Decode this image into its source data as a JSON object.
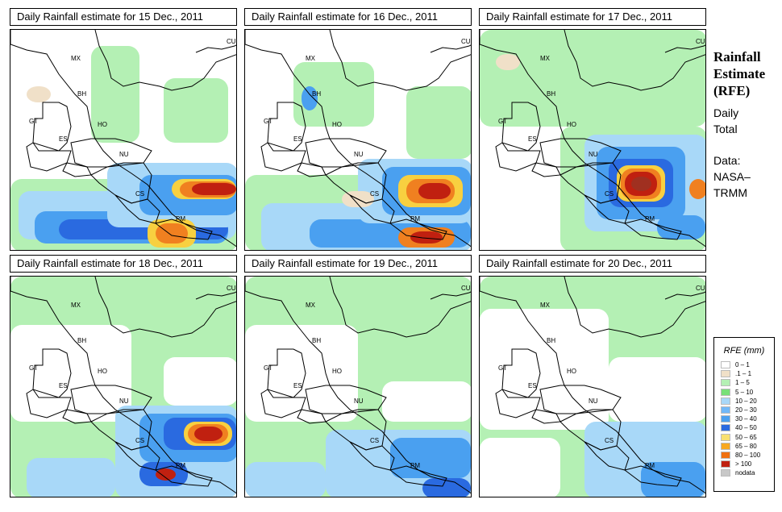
{
  "panels": [
    {
      "title": "Daily Rainfall estimate for  15 Dec., 2011",
      "blobs": [
        {
          "c": "#b4f0b4",
          "x": 0,
          "y": 185,
          "w": 282,
          "h": 90
        },
        {
          "c": "#a8d8f8",
          "x": 10,
          "y": 200,
          "w": 270,
          "h": 60
        },
        {
          "c": "#4aa0f0",
          "x": 30,
          "y": 225,
          "w": 240,
          "h": 40
        },
        {
          "c": "#2a6ae0",
          "x": 60,
          "y": 235,
          "w": 210,
          "h": 25
        },
        {
          "c": "#b4f0b4",
          "x": 100,
          "y": 20,
          "w": 60,
          "h": 120
        },
        {
          "c": "#b4f0b4",
          "x": 190,
          "y": 60,
          "w": 80,
          "h": 80
        },
        {
          "c": "#a8d8f8",
          "x": 120,
          "y": 165,
          "w": 162,
          "h": 80
        },
        {
          "c": "#4aa0f0",
          "x": 160,
          "y": 180,
          "w": 122,
          "h": 50
        },
        {
          "c": "#f8d040",
          "x": 200,
          "y": 185,
          "w": 80,
          "h": 25
        },
        {
          "c": "#f08020",
          "x": 210,
          "y": 188,
          "w": 70,
          "h": 20
        },
        {
          "c": "#c02010",
          "x": 225,
          "y": 190,
          "w": 55,
          "h": 15
        },
        {
          "c": "#f8d040",
          "x": 170,
          "y": 235,
          "w": 60,
          "h": 35
        },
        {
          "c": "#f08020",
          "x": 180,
          "y": 240,
          "w": 40,
          "h": 25
        },
        {
          "c": "#f0e0c8",
          "x": 20,
          "y": 70,
          "w": 30,
          "h": 20
        }
      ]
    },
    {
      "title": "Daily Rainfall estimate for  16 Dec., 2011",
      "blobs": [
        {
          "c": "#b4f0b4",
          "x": 0,
          "y": 180,
          "w": 282,
          "h": 95
        },
        {
          "c": "#a8d8f8",
          "x": 20,
          "y": 215,
          "w": 262,
          "h": 60
        },
        {
          "c": "#4aa0f0",
          "x": 80,
          "y": 235,
          "w": 200,
          "h": 35
        },
        {
          "c": "#b4f0b4",
          "x": 60,
          "y": 40,
          "w": 100,
          "h": 80
        },
        {
          "c": "#4aa0f0",
          "x": 70,
          "y": 70,
          "w": 20,
          "h": 30
        },
        {
          "c": "#b4f0b4",
          "x": 200,
          "y": 70,
          "w": 82,
          "h": 90
        },
        {
          "c": "#a8d8f8",
          "x": 140,
          "y": 160,
          "w": 142,
          "h": 80
        },
        {
          "c": "#4aa0f0",
          "x": 170,
          "y": 170,
          "w": 110,
          "h": 60
        },
        {
          "c": "#f8d040",
          "x": 190,
          "y": 180,
          "w": 80,
          "h": 40
        },
        {
          "c": "#f08020",
          "x": 200,
          "y": 185,
          "w": 60,
          "h": 30
        },
        {
          "c": "#c02010",
          "x": 215,
          "y": 190,
          "w": 40,
          "h": 20
        },
        {
          "c": "#f08020",
          "x": 190,
          "y": 245,
          "w": 70,
          "h": 25
        },
        {
          "c": "#c02010",
          "x": 205,
          "y": 250,
          "w": 40,
          "h": 15
        },
        {
          "c": "#f0e0c8",
          "x": 120,
          "y": 200,
          "w": 40,
          "h": 20
        }
      ]
    },
    {
      "title": "Daily Rainfall estimate for  17 Dec., 2011",
      "blobs": [
        {
          "c": "#b4f0b4",
          "x": 0,
          "y": 0,
          "w": 282,
          "h": 120
        },
        {
          "c": "#b4f0b4",
          "x": 100,
          "y": 120,
          "w": 182,
          "h": 155
        },
        {
          "c": "#a8d8f8",
          "x": 130,
          "y": 130,
          "w": 152,
          "h": 120
        },
        {
          "c": "#4aa0f0",
          "x": 145,
          "y": 145,
          "w": 110,
          "h": 90
        },
        {
          "c": "#2a6ae0",
          "x": 160,
          "y": 160,
          "w": 80,
          "h": 60
        },
        {
          "c": "#f8d040",
          "x": 170,
          "y": 168,
          "w": 60,
          "h": 45
        },
        {
          "c": "#f08020",
          "x": 175,
          "y": 172,
          "w": 50,
          "h": 38
        },
        {
          "c": "#c02010",
          "x": 180,
          "y": 176,
          "w": 40,
          "h": 30
        },
        {
          "c": "#a03020",
          "x": 188,
          "y": 182,
          "w": 25,
          "h": 18
        },
        {
          "c": "#4aa0f0",
          "x": 220,
          "y": 230,
          "w": 60,
          "h": 30
        },
        {
          "c": "#f08020",
          "x": 260,
          "y": 185,
          "w": 22,
          "h": 25
        },
        {
          "c": "#f0e0c8",
          "x": 20,
          "y": 30,
          "w": 30,
          "h": 20
        }
      ]
    },
    {
      "title": "Daily Rainfall estimate for  18 Dec., 2011",
      "blobs": [
        {
          "c": "#b4f0b4",
          "x": 0,
          "y": 0,
          "w": 282,
          "h": 275
        },
        {
          "c": "#ffffff",
          "x": 0,
          "y": 60,
          "w": 150,
          "h": 120
        },
        {
          "c": "#ffffff",
          "x": 190,
          "y": 100,
          "w": 92,
          "h": 60
        },
        {
          "c": "#a8d8f8",
          "x": 130,
          "y": 160,
          "w": 152,
          "h": 115
        },
        {
          "c": "#4aa0f0",
          "x": 160,
          "y": 170,
          "w": 122,
          "h": 60
        },
        {
          "c": "#2a6ae0",
          "x": 190,
          "y": 175,
          "w": 90,
          "h": 40
        },
        {
          "c": "#f8d040",
          "x": 215,
          "y": 180,
          "w": 60,
          "h": 30
        },
        {
          "c": "#f08020",
          "x": 220,
          "y": 183,
          "w": 50,
          "h": 24
        },
        {
          "c": "#c02010",
          "x": 228,
          "y": 186,
          "w": 35,
          "h": 18
        },
        {
          "c": "#2a6ae0",
          "x": 160,
          "y": 230,
          "w": 60,
          "h": 30
        },
        {
          "c": "#c02010",
          "x": 180,
          "y": 238,
          "w": 25,
          "h": 15
        },
        {
          "c": "#a8d8f8",
          "x": 20,
          "y": 225,
          "w": 110,
          "h": 50
        }
      ]
    },
    {
      "title": "Daily Rainfall estimate for  19 Dec., 2011",
      "blobs": [
        {
          "c": "#b4f0b4",
          "x": 0,
          "y": 0,
          "w": 282,
          "h": 275
        },
        {
          "c": "#ffffff",
          "x": 0,
          "y": 60,
          "w": 140,
          "h": 120
        },
        {
          "c": "#ffffff",
          "x": 170,
          "y": 130,
          "w": 112,
          "h": 50
        },
        {
          "c": "#a8d8f8",
          "x": 100,
          "y": 190,
          "w": 182,
          "h": 85
        },
        {
          "c": "#4aa0f0",
          "x": 180,
          "y": 200,
          "w": 100,
          "h": 50
        },
        {
          "c": "#2a6ae0",
          "x": 220,
          "y": 250,
          "w": 60,
          "h": 25
        },
        {
          "c": "#a8d8f8",
          "x": 0,
          "y": 230,
          "w": 100,
          "h": 45
        }
      ]
    },
    {
      "title": "Daily Rainfall estimate for  20 Dec., 2011",
      "blobs": [
        {
          "c": "#b4f0b4",
          "x": 0,
          "y": 0,
          "w": 282,
          "h": 275
        },
        {
          "c": "#ffffff",
          "x": 0,
          "y": 40,
          "w": 160,
          "h": 150
        },
        {
          "c": "#ffffff",
          "x": 160,
          "y": 100,
          "w": 122,
          "h": 80
        },
        {
          "c": "#a8d8f8",
          "x": 130,
          "y": 180,
          "w": 152,
          "h": 95
        },
        {
          "c": "#4aa0f0",
          "x": 200,
          "y": 230,
          "w": 80,
          "h": 45
        },
        {
          "c": "#ffffff",
          "x": 0,
          "y": 200,
          "w": 100,
          "h": 75
        }
      ]
    }
  ],
  "country_labels": [
    "MX",
    "BH",
    "GT",
    "HO",
    "ES",
    "NU",
    "CS",
    "PM",
    "CU"
  ],
  "sidebar": {
    "title_lines": [
      "Rainfall",
      "Estimate",
      "(RFE)"
    ],
    "daily_total": [
      "Daily",
      "Total"
    ],
    "data_source": [
      "Data:",
      "NASA–",
      "TRMM"
    ]
  },
  "legend": {
    "title": "RFE (mm)",
    "items": [
      {
        "label": "0 – 1",
        "color": "#ffffff"
      },
      {
        "label": ".1 – 1",
        "color": "#f0e0c8"
      },
      {
        "label": "1 – 5",
        "color": "#b4f0b4"
      },
      {
        "label": "5 – 10",
        "color": "#78e078"
      },
      {
        "label": "10 – 20",
        "color": "#a8d8f8"
      },
      {
        "label": "20 – 30",
        "color": "#70b8f8"
      },
      {
        "label": "30 – 40",
        "color": "#4aa0f0"
      },
      {
        "label": "40 – 50",
        "color": "#2a6ae0"
      },
      {
        "label": "50 – 65",
        "color": "#f8e070"
      },
      {
        "label": "65 – 80",
        "color": "#f8a820"
      },
      {
        "label": "80 – 100",
        "color": "#f07010"
      },
      {
        "label": "> 100",
        "color": "#c02010"
      },
      {
        "label": "nodata",
        "color": "#c8c8c8"
      }
    ]
  }
}
